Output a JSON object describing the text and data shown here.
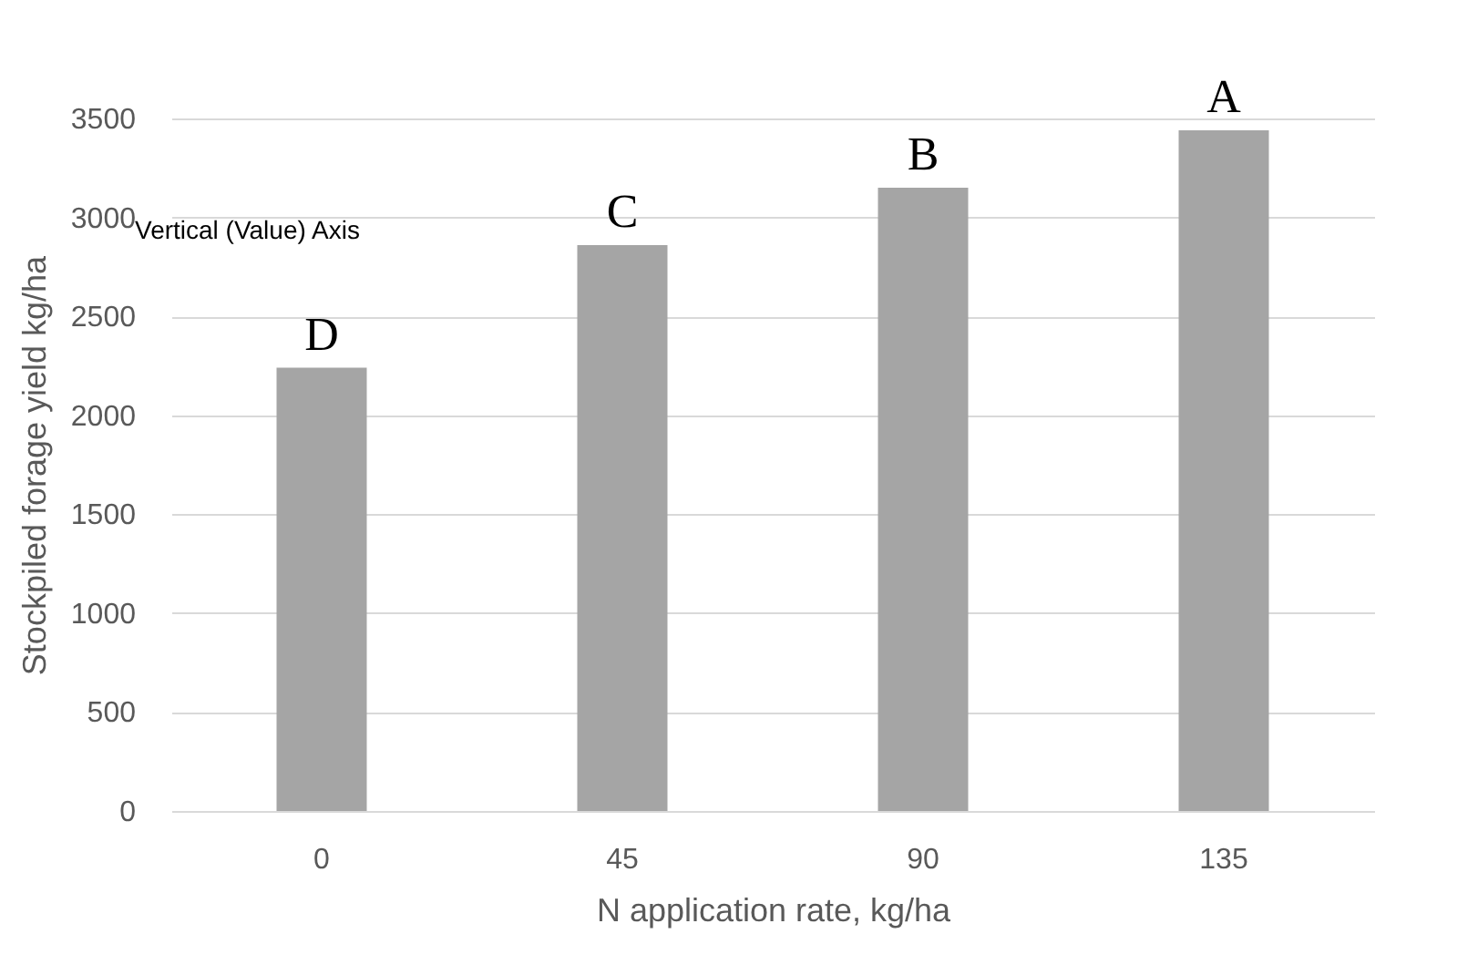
{
  "chart_data": {
    "type": "bar",
    "xlabel": "N application rate, kg/ha",
    "ylabel": "Stockpiled forage yield kg/ha",
    "categories": [
      "0",
      "45",
      "90",
      "135"
    ],
    "values": [
      2240,
      2860,
      3150,
      3440
    ],
    "color": "#a5a5a5",
    "ylim": [
      0,
      3500
    ],
    "yticks": [
      0,
      500,
      1000,
      1500,
      2000,
      2500,
      3000,
      3500
    ],
    "grid": "y",
    "annotations": [
      {
        "text": "D",
        "x": "0",
        "y": 2240
      },
      {
        "text": "C",
        "x": "45",
        "y": 2860
      },
      {
        "text": "B",
        "x": "90",
        "y": 3150
      },
      {
        "text": "A",
        "x": "135",
        "y": 3440
      },
      "Vertical (Value) Axis"
    ]
  }
}
